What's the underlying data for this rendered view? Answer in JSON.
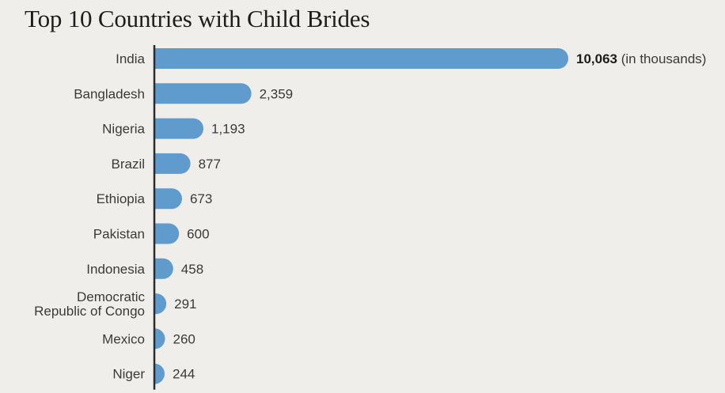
{
  "title": "Top 10 Countries with Child Brides",
  "chart_data": {
    "type": "bar",
    "orientation": "horizontal",
    "title": "Top 10 Countries with Child Brides",
    "unit": "(in thousands)",
    "categories": [
      [
        "India"
      ],
      [
        "Bangladesh"
      ],
      [
        "Nigeria"
      ],
      [
        "Brazil"
      ],
      [
        "Ethiopia"
      ],
      [
        "Pakistan"
      ],
      [
        "Indonesia"
      ],
      [
        "Democratic",
        "Republic of Congo"
      ],
      [
        "Mexico"
      ],
      [
        "Niger"
      ]
    ],
    "values": [
      10063,
      2359,
      1193,
      877,
      673,
      600,
      458,
      291,
      260,
      244
    ],
    "value_labels": [
      "10,063",
      "2,359",
      "1,193",
      "877",
      "673",
      "600",
      "458",
      "291",
      "260",
      "244"
    ],
    "xlim": [
      0,
      10063
    ],
    "grid": false,
    "bar_color": "#5f9bcd",
    "axis_color": "#2b2b2b"
  }
}
